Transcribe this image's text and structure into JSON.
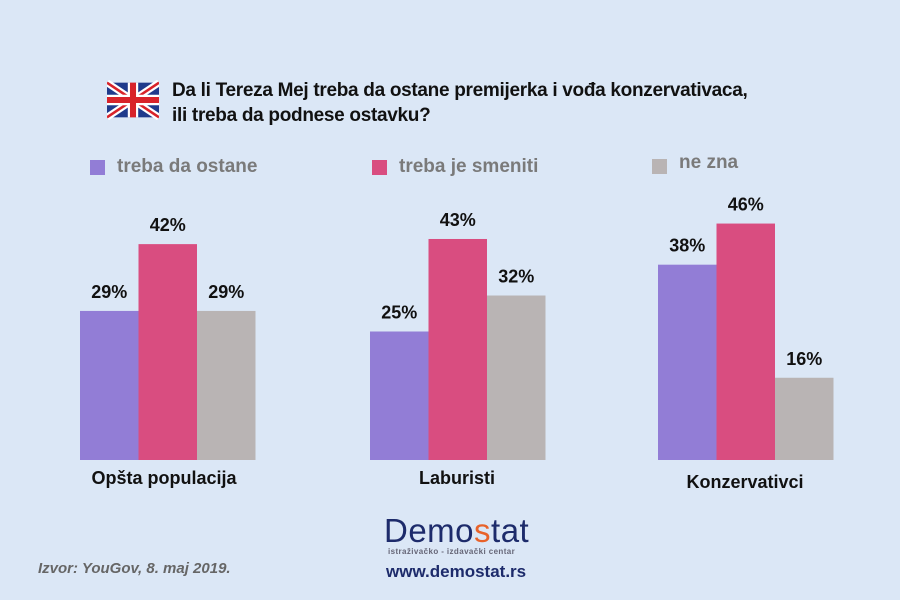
{
  "title_line1": "Da li Tereza Mej treba da ostane premijerka i vođa konzervativaca,",
  "title_line2": "ili treba da podnese ostavku?",
  "flag_icon": "uk-flag-icon",
  "chart_data": {
    "type": "bar",
    "categories": [
      "Opšta populacija",
      "Laburisti",
      "Konzervativci"
    ],
    "series": [
      {
        "name": "treba da ostane",
        "color": "#927dd6",
        "values": [
          29,
          25,
          38
        ]
      },
      {
        "name": "treba je smeniti",
        "color": "#d94d80",
        "values": [
          42,
          43,
          46
        ]
      },
      {
        "name": "ne zna",
        "color": "#b9b4b4",
        "values": [
          29,
          32,
          16
        ]
      }
    ],
    "value_suffix": "%",
    "legend_position": "top",
    "grid": false
  },
  "logo": {
    "text_a": "Demo",
    "text_s": "s",
    "text_b": "tat",
    "tagline": "istraživačko - izdavački  centar"
  },
  "url": "www.demostat.rs",
  "source": "Izvor: YouGov, 8. maj 2019."
}
